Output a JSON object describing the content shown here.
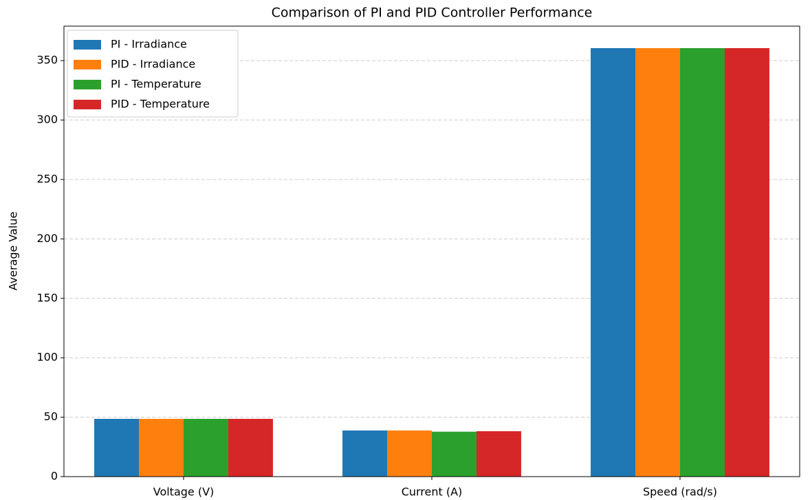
{
  "chart_data": {
    "type": "bar",
    "title": "Comparison of PI and PID Controller Performance",
    "y_label": "Average Value",
    "categories": [
      "Voltage (V)",
      "Current (A)",
      "Speed (rad/s)"
    ],
    "series": [
      {
        "name": "PI - Irradiance",
        "color": "#1f77b4",
        "values": [
          48.6,
          38.8,
          360.5
        ]
      },
      {
        "name": "PID - Irradiance",
        "color": "#ff7f0e",
        "values": [
          48.6,
          38.8,
          360.5
        ]
      },
      {
        "name": "PI - Temperature",
        "color": "#2ca02c",
        "values": [
          48.6,
          37.8,
          360.5
        ]
      },
      {
        "name": "PID - Temperature",
        "color": "#d62728",
        "values": [
          48.6,
          38.2,
          360.5
        ]
      }
    ],
    "ylim": [
      0,
      379
    ],
    "yticks": [
      0,
      50,
      100,
      150,
      200,
      250,
      300,
      350
    ],
    "grid": true,
    "legend": "upper left"
  }
}
